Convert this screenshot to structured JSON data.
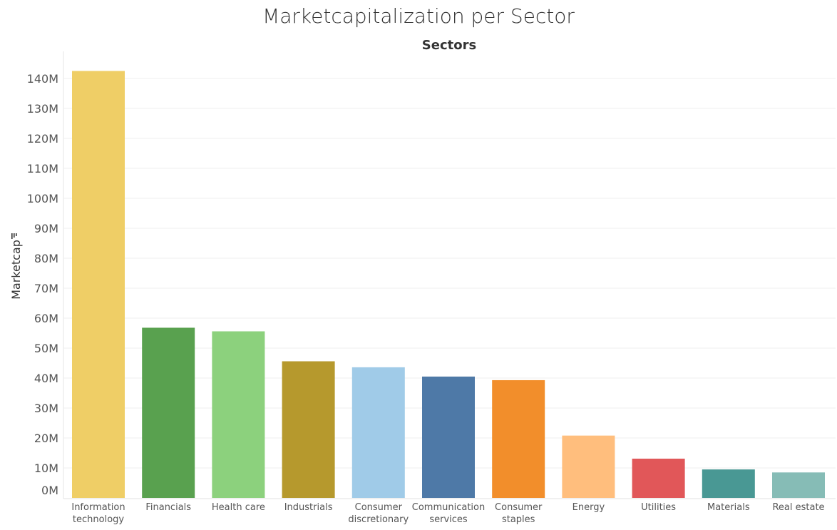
{
  "chart_data": {
    "type": "bar",
    "title": "Marketcapitalization per Sector",
    "column_header": "Sectors",
    "ylabel": "Marketcap",
    "xlabel": "",
    "ylim": [
      0,
      145
    ],
    "y_unit": "M",
    "yticks": [
      "0M",
      "10M",
      "20M",
      "30M",
      "40M",
      "50M",
      "60M",
      "70M",
      "80M",
      "90M",
      "100M",
      "110M",
      "120M",
      "130M",
      "140M"
    ],
    "grid": true,
    "categories": [
      "Information technology",
      "Financials",
      "Health care",
      "Industrials",
      "Consumer discretionary",
      "Communication services",
      "Consumer staples",
      "Energy",
      "Utilities",
      "Materials",
      "Real estate"
    ],
    "values": [
      142.5,
      56.8,
      55.6,
      45.6,
      43.6,
      40.5,
      39.3,
      20.8,
      13.1,
      9.5,
      8.5
    ],
    "colors": [
      "#EFCE66",
      "#59A14F",
      "#8CD17D",
      "#B6992D",
      "#A0CBE8",
      "#4E79A7",
      "#F28E2B",
      "#FFBE7D",
      "#E15759",
      "#499894",
      "#86BCB6"
    ],
    "sort_icon": "sort-descending-icon"
  }
}
